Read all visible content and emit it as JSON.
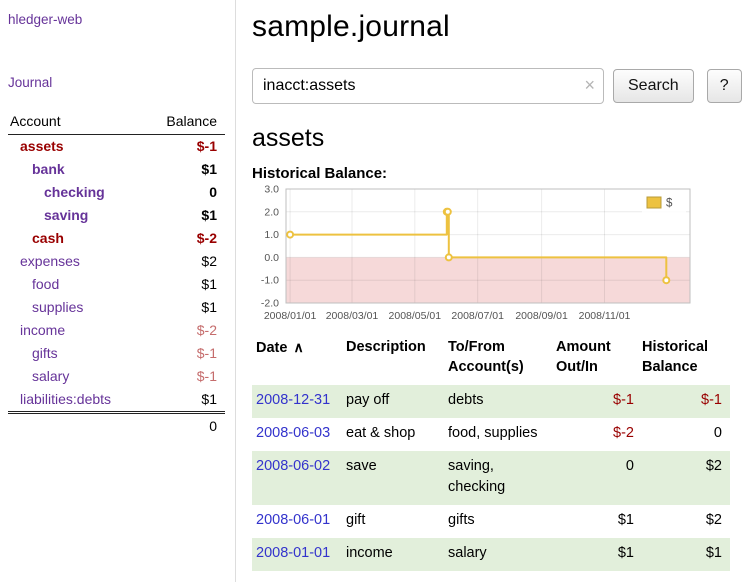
{
  "colors": {
    "link_purple": "#663399",
    "date_link_blue": "#3333cc",
    "negative_red": "#990000",
    "muted_negative_pink": "#c56c6c",
    "row_stripe_green": "#e2efdb",
    "chart_line_gold": "#edc240",
    "chart_negative_fill": "#f6d9d9"
  },
  "sidebar": {
    "app_title": "hledger-web",
    "journal_link": "Journal",
    "table": {
      "account_header": "Account",
      "balance_header": "Balance",
      "total": "0"
    },
    "accounts": [
      {
        "name": "assets",
        "balance": "$-1",
        "depth": 0
      },
      {
        "name": "bank",
        "balance": "$1",
        "depth": 1
      },
      {
        "name": "checking",
        "balance": "0",
        "depth": 2
      },
      {
        "name": "saving",
        "balance": "$1",
        "depth": 2
      },
      {
        "name": "cash",
        "balance": "$-2",
        "depth": 1
      },
      {
        "name": "expenses",
        "balance": "$2",
        "depth": 0
      },
      {
        "name": "food",
        "balance": "$1",
        "depth": 1
      },
      {
        "name": "supplies",
        "balance": "$1",
        "depth": 1
      },
      {
        "name": "income",
        "balance": "$-2",
        "depth": 0
      },
      {
        "name": "gifts",
        "balance": "$-1",
        "depth": 1
      },
      {
        "name": "salary",
        "balance": "$-1",
        "depth": 1
      },
      {
        "name": "liabilities:debts",
        "balance": "$1",
        "depth": 0
      }
    ]
  },
  "main": {
    "title": "sample.journal",
    "search": {
      "value": "inacct:assets",
      "clear_icon": "×",
      "button_label": "Search",
      "help_label": "?"
    },
    "account_heading": "assets",
    "chart_label": "Historical Balance:"
  },
  "chart_data": {
    "type": "line",
    "title": "Historical Balance",
    "series": [
      {
        "name": "$",
        "color": "#edc240",
        "line_style": "step-after",
        "points": [
          {
            "date": "2008-01-01",
            "value": 1
          },
          {
            "date": "2008-06-01",
            "value": 2
          },
          {
            "date": "2008-06-02",
            "value": 2
          },
          {
            "date": "2008-06-03",
            "value": 0
          },
          {
            "date": "2008-12-31",
            "value": -1
          }
        ]
      }
    ],
    "x_ticks": [
      "2008/01/01",
      "2008/03/01",
      "2008/05/01",
      "2008/07/01",
      "2008/09/01",
      "2008/11/01"
    ],
    "y_ticks": [
      "3.0",
      "2.0",
      "1.0",
      "0.0",
      "-1.0",
      "-2.0"
    ],
    "ylim": [
      -2,
      3
    ],
    "grid": true,
    "legend": {
      "position": "top-right",
      "label": "$"
    },
    "negative_region_fill": "#f6d9d9"
  },
  "register": {
    "headers": {
      "date": "Date",
      "sort_icon": "∧",
      "description": "Description",
      "accounts": "To/From\nAccount(s)",
      "amount": "Amount\nOut/In",
      "balance": "Historical\nBalance"
    },
    "rows": [
      {
        "date": "2008-12-31",
        "description": "pay off",
        "accounts": "debts",
        "amount": "$-1",
        "balance": "$-1"
      },
      {
        "date": "2008-06-03",
        "description": "eat & shop",
        "accounts": "food, supplies",
        "amount": "$-2",
        "balance": "0"
      },
      {
        "date": "2008-06-02",
        "description": "save",
        "accounts": "saving, checking",
        "amount": "0",
        "balance": "$2"
      },
      {
        "date": "2008-06-01",
        "description": "gift",
        "accounts": "gifts",
        "amount": "$1",
        "balance": "$2"
      },
      {
        "date": "2008-01-01",
        "description": "income",
        "accounts": "salary",
        "amount": "$1",
        "balance": "$1"
      }
    ]
  }
}
